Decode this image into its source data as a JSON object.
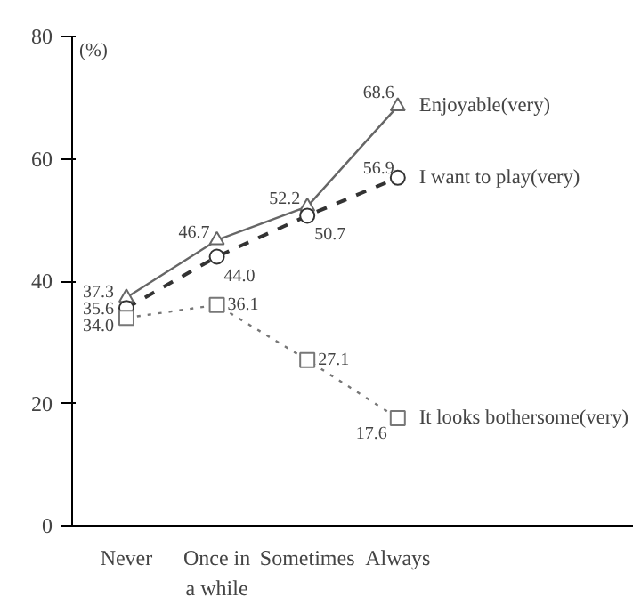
{
  "chart_data": {
    "type": "line",
    "ylabel": "(%)",
    "categories": [
      "Never",
      "Once in\na while",
      "Sometimes",
      "Always"
    ],
    "series": [
      {
        "name": "Enjoyable(very)",
        "color": "#666666",
        "values": [
          37.3,
          46.7,
          52.2,
          68.6
        ],
        "marker": "triangle",
        "line_style": "solid"
      },
      {
        "name": "I want to play(very)",
        "color": "#333333",
        "values": [
          35.6,
          44.0,
          50.7,
          56.9
        ],
        "value_labels": [
          "35.6",
          "44.0",
          "50.7",
          "56.9"
        ],
        "marker": "circle",
        "line_style": "dashed"
      },
      {
        "name": "It looks bothersome(very)",
        "color": "#777777",
        "values": [
          34.0,
          36.1,
          27.1,
          17.6
        ],
        "value_labels": [
          "34.0",
          "36.1",
          "27.1",
          "17.6"
        ],
        "marker": "square",
        "line_style": "dotted"
      }
    ],
    "ylim": [
      0,
      80
    ],
    "yticks": [
      0,
      20,
      40,
      60,
      80
    ],
    "data_labels": true,
    "legend": false,
    "grid": false
  }
}
